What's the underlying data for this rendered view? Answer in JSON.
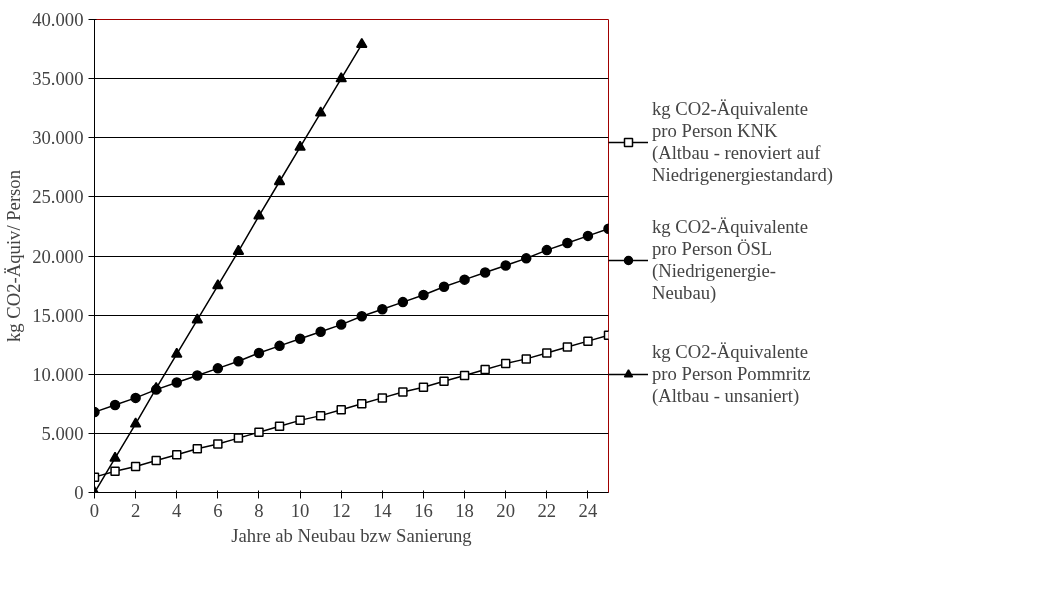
{
  "chart_data": {
    "type": "line",
    "xlabel": "Jahre ab Neubau bzw Sanierung",
    "ylabel": "kg CO2-Äquiv/ Person",
    "x": [
      0,
      1,
      2,
      3,
      4,
      5,
      6,
      7,
      8,
      9,
      10,
      11,
      12,
      13,
      14,
      15,
      16,
      17,
      18,
      19,
      20,
      21,
      22,
      23,
      24,
      25
    ],
    "xlim": [
      0,
      25
    ],
    "xticks": [
      0,
      2,
      4,
      6,
      8,
      10,
      12,
      14,
      16,
      18,
      20,
      22,
      24
    ],
    "ylim": [
      0,
      40000
    ],
    "yticks": [
      0,
      {
        "value": 5000,
        "label": "5.000"
      },
      {
        "value": 10000,
        "label": "10.000"
      },
      {
        "value": 15000,
        "label": "15.000"
      },
      {
        "value": 20000,
        "label": "20.000"
      },
      {
        "value": 25000,
        "label": "25.000"
      },
      {
        "value": 30000,
        "label": "30.000"
      },
      {
        "value": 35000,
        "label": "35.000"
      },
      {
        "value": 40000,
        "label": "40.000"
      }
    ],
    "grid": "y",
    "legend": "right",
    "line_style": "solid",
    "series": [
      {
        "name": "kg CO2-Äquivalente\npro Person KNK\n(Altbau - renoviert auf\nNiedrigenergiestandard)",
        "color": "#000000",
        "marker": "square",
        "values": [
          1300,
          1800,
          2200,
          2700,
          3200,
          3700,
          4100,
          4600,
          5100,
          5600,
          6100,
          6500,
          7000,
          7500,
          8000,
          8500,
          8900,
          9400,
          9900,
          10400,
          10900,
          11300,
          11800,
          12300,
          12800,
          13300
        ]
      },
      {
        "name": "kg CO2-Äquivalente\npro Person ÖSL\n(Niedrigenergie-\nNeubau)",
        "color": "#000000",
        "marker": "circle",
        "values": [
          6800,
          7400,
          8000,
          8700,
          9300,
          9900,
          10500,
          11100,
          11800,
          12400,
          13000,
          13600,
          14200,
          14900,
          15500,
          16100,
          16700,
          17400,
          18000,
          18600,
          19200,
          19800,
          20500,
          21100,
          21700,
          22300
        ]
      },
      {
        "name": "kg CO2-Äquivalente\npro Person Pommritz\n(Altbau - unsaniert)",
        "color": "#000000",
        "marker": "triangle",
        "x": [
          0,
          1,
          2,
          3,
          4,
          5,
          6,
          7,
          8,
          9,
          10,
          11,
          12,
          13
        ],
        "values": [
          0,
          2900,
          5800,
          8800,
          11700,
          14600,
          17500,
          20400,
          23400,
          26300,
          29200,
          32100,
          35000,
          37900
        ]
      }
    ]
  }
}
